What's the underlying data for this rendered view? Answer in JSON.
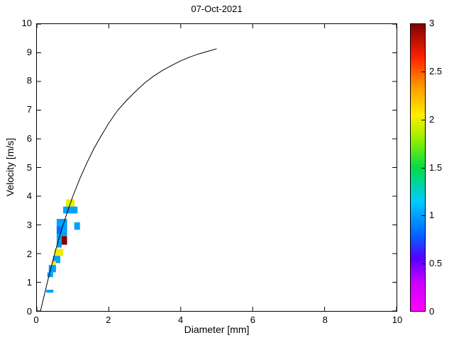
{
  "chart_data": {
    "type": "heatmap",
    "title": "07-Oct-2021",
    "xlabel": "Diameter [mm]",
    "ylabel": "Velocity [m/s]",
    "xlim": [
      0,
      10
    ],
    "ylim": [
      0,
      10
    ],
    "grid": false,
    "legend": "none",
    "x_ticks": [
      {
        "v": 0,
        "label": "0"
      },
      {
        "v": 2,
        "label": "2"
      },
      {
        "v": 4,
        "label": "4"
      },
      {
        "v": 6,
        "label": "6"
      },
      {
        "v": 8,
        "label": "8"
      },
      {
        "v": 10,
        "label": "10"
      }
    ],
    "y_ticks": [
      {
        "v": 0,
        "label": "0"
      },
      {
        "v": 1,
        "label": "1"
      },
      {
        "v": 2,
        "label": "2"
      },
      {
        "v": 3,
        "label": "3"
      },
      {
        "v": 4,
        "label": "4"
      },
      {
        "v": 5,
        "label": "5"
      },
      {
        "v": 6,
        "label": "6"
      },
      {
        "v": 7,
        "label": "7"
      },
      {
        "v": 8,
        "label": "8"
      },
      {
        "v": 9,
        "label": "9"
      },
      {
        "v": 10,
        "label": "10"
      }
    ],
    "colorbar": {
      "min": 0,
      "max": 3,
      "ticks": [
        {
          "v": 0,
          "label": "0"
        },
        {
          "v": 0.5,
          "label": "0.5"
        },
        {
          "v": 1,
          "label": "1"
        },
        {
          "v": 1.5,
          "label": "1.5"
        },
        {
          "v": 2,
          "label": "2"
        },
        {
          "v": 2.5,
          "label": "2.5"
        },
        {
          "v": 3,
          "label": "3"
        }
      ],
      "colormap": [
        {
          "t": 0.0,
          "c": "#ff00ff"
        },
        {
          "t": 0.3,
          "c": "#cc00ff"
        },
        {
          "t": 0.55,
          "c": "#5500ff"
        },
        {
          "t": 0.8,
          "c": "#0066ff"
        },
        {
          "t": 1.15,
          "c": "#00ccff"
        },
        {
          "t": 1.5,
          "c": "#00dd44"
        },
        {
          "t": 1.8,
          "c": "#99ee00"
        },
        {
          "t": 2.05,
          "c": "#ffee00"
        },
        {
          "t": 2.35,
          "c": "#ff9900"
        },
        {
          "t": 2.65,
          "c": "#ff2200"
        },
        {
          "t": 3.0,
          "c": "#800000"
        }
      ]
    },
    "curve": {
      "name": "terminal-velocity-curve",
      "color": "#000000",
      "points": [
        [
          0.1,
          0.0
        ],
        [
          0.2,
          0.52
        ],
        [
          0.3,
          1.05
        ],
        [
          0.4,
          1.55
        ],
        [
          0.5,
          2.02
        ],
        [
          0.6,
          2.47
        ],
        [
          0.7,
          2.89
        ],
        [
          0.8,
          3.27
        ],
        [
          0.9,
          3.64
        ],
        [
          1.0,
          4.0
        ],
        [
          1.2,
          4.63
        ],
        [
          1.4,
          5.19
        ],
        [
          1.6,
          5.69
        ],
        [
          1.8,
          6.13
        ],
        [
          2.0,
          6.55
        ],
        [
          2.25,
          7.0
        ],
        [
          2.5,
          7.35
        ],
        [
          2.75,
          7.66
        ],
        [
          3.0,
          7.95
        ],
        [
          3.25,
          8.19
        ],
        [
          3.5,
          8.39
        ],
        [
          3.75,
          8.56
        ],
        [
          4.0,
          8.72
        ],
        [
          4.25,
          8.85
        ],
        [
          4.5,
          8.96
        ],
        [
          4.75,
          9.05
        ],
        [
          5.0,
          9.14
        ]
      ]
    },
    "cells": [
      {
        "d": 0.55,
        "v": 2.95,
        "w": 0.29,
        "h": 0.26,
        "val": 1.0
      },
      {
        "d": 0.55,
        "v": 2.69,
        "w": 0.29,
        "h": 0.26,
        "val": 0.85
      },
      {
        "d": 0.55,
        "v": 2.45,
        "w": 0.14,
        "h": 0.24,
        "val": 1.0
      },
      {
        "d": 0.55,
        "v": 2.21,
        "w": 0.14,
        "h": 0.24,
        "val": 1.0
      },
      {
        "d": 0.69,
        "v": 2.61,
        "w": 0.15,
        "h": 0.34,
        "val": 1.0
      },
      {
        "d": 0.69,
        "v": 2.31,
        "w": 0.15,
        "h": 0.3,
        "val": 3.0
      },
      {
        "d": 0.81,
        "v": 3.64,
        "w": 0.24,
        "h": 0.25,
        "val": 2.0
      },
      {
        "d": 0.73,
        "v": 3.4,
        "w": 0.2,
        "h": 0.24,
        "val": 1.0
      },
      {
        "d": 0.93,
        "v": 3.4,
        "w": 0.2,
        "h": 0.24,
        "val": 1.0
      },
      {
        "d": 1.04,
        "v": 2.83,
        "w": 0.16,
        "h": 0.26,
        "val": 1.0
      },
      {
        "d": 0.49,
        "v": 1.92,
        "w": 0.24,
        "h": 0.25,
        "val": 2.0
      },
      {
        "d": 0.45,
        "v": 1.67,
        "w": 0.2,
        "h": 0.25,
        "val": 1.0
      },
      {
        "d": 0.41,
        "v": 1.6,
        "w": 0.12,
        "h": 0.14,
        "val": 2.0
      },
      {
        "d": 0.33,
        "v": 1.35,
        "w": 0.2,
        "h": 0.25,
        "val": 1.0
      },
      {
        "d": 0.29,
        "v": 1.18,
        "w": 0.16,
        "h": 0.17,
        "val": 1.0
      },
      {
        "d": 0.26,
        "v": 0.64,
        "w": 0.2,
        "h": 0.1,
        "val": 1.0
      }
    ]
  }
}
